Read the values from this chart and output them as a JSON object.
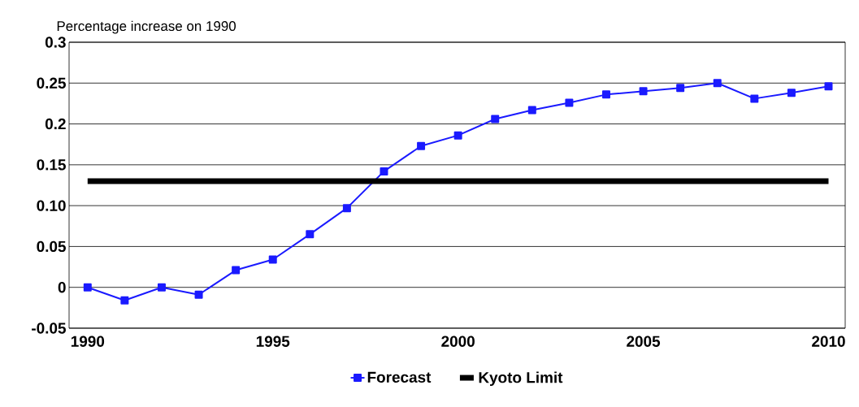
{
  "chart_data": {
    "type": "line",
    "ylabel": "Percentage increase on 1990",
    "x": [
      1990,
      1991,
      1992,
      1993,
      1994,
      1995,
      1996,
      1997,
      1998,
      1999,
      2000,
      2001,
      2002,
      2003,
      2004,
      2005,
      2006,
      2007,
      2008,
      2009,
      2010
    ],
    "series": [
      {
        "name": "Forecast",
        "color": "#1a1aff",
        "marker": "square",
        "values": [
          0.0,
          -0.016,
          0.0,
          -0.009,
          0.021,
          0.034,
          0.065,
          0.097,
          0.142,
          0.173,
          0.186,
          0.206,
          0.217,
          0.226,
          0.236,
          0.24,
          0.244,
          0.25,
          0.231,
          0.238,
          0.246
        ]
      },
      {
        "name": "Kyoto Limit",
        "color": "#000000",
        "marker": "none",
        "x": [
          1990,
          2010
        ],
        "values": [
          0.13,
          0.13
        ]
      }
    ],
    "xlim": [
      1989.5,
      2010.45
    ],
    "ylim": [
      -0.05,
      0.3
    ],
    "xticks": [
      1990,
      1995,
      2000,
      2005,
      2010
    ],
    "yticks": [
      -0.05,
      0,
      0.05,
      {
        "value": 0.1,
        "label": "0.10"
      },
      0.15,
      0.2,
      0.25,
      0.3
    ],
    "grid": "y",
    "legend": "bottom"
  }
}
